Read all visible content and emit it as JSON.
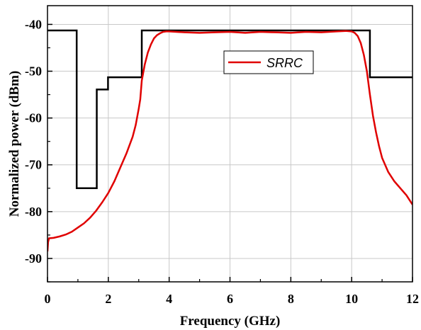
{
  "chart_data": {
    "type": "line",
    "title": "",
    "xlabel": "Frequency (GHz)",
    "ylabel": "Normalized power (dBm)",
    "xlim": [
      0,
      12
    ],
    "ylim": [
      -95,
      -36
    ],
    "x_ticks": [
      0,
      2,
      4,
      6,
      8,
      10,
      12
    ],
    "x_tick_labels": [
      "0",
      "2",
      "4",
      "6",
      "8",
      "10",
      "12"
    ],
    "y_ticks": [
      -40,
      -50,
      -60,
      -70,
      -80,
      -90
    ],
    "y_tick_labels": [
      "-40",
      "-50",
      "-60",
      "-70",
      "-80",
      "-90"
    ],
    "grid": true,
    "legend_position": "top-right",
    "colors": {
      "mask": "#000000",
      "srrc": "#e00000",
      "grid": "#c8c8c8"
    },
    "series": [
      {
        "id": "mask",
        "x": [
          0,
          0.96,
          0.96,
          1.62,
          1.62,
          1.99,
          1.99,
          3.1,
          3.1,
          10.6,
          10.6,
          12
        ],
        "values": [
          -41.3,
          -41.3,
          -75.0,
          -75.0,
          -53.9,
          -53.9,
          -51.3,
          -51.3,
          -41.3,
          -41.3,
          -51.3,
          -51.3
        ]
      },
      {
        "name": "SRRC",
        "x": [
          0,
          0.02,
          0.05,
          0.2,
          0.4,
          0.6,
          0.8,
          1.0,
          1.2,
          1.4,
          1.6,
          1.8,
          2.0,
          2.2,
          2.4,
          2.6,
          2.8,
          2.9,
          3.0,
          3.05,
          3.1,
          3.2,
          3.3,
          3.4,
          3.5,
          3.6,
          3.7,
          3.8,
          3.9,
          4.0,
          4.5,
          5.0,
          5.5,
          6.0,
          6.5,
          7.0,
          7.5,
          8.0,
          8.5,
          9.0,
          9.5,
          9.8,
          10.0,
          10.1,
          10.2,
          10.3,
          10.4,
          10.5,
          10.6,
          10.7,
          10.8,
          10.9,
          11.0,
          11.2,
          11.4,
          11.6,
          11.8,
          11.9,
          12.0
        ],
        "values": [
          -88.5,
          -86.5,
          -85.7,
          -85.6,
          -85.3,
          -84.9,
          -84.3,
          -83.4,
          -82.5,
          -81.3,
          -79.8,
          -78.0,
          -76.0,
          -73.5,
          -70.5,
          -67.5,
          -64.0,
          -61.5,
          -58.0,
          -56.0,
          -52.0,
          -48.5,
          -46.0,
          -44.3,
          -43.0,
          -42.3,
          -41.9,
          -41.6,
          -41.5,
          -41.5,
          -41.7,
          -41.8,
          -41.7,
          -41.6,
          -41.8,
          -41.6,
          -41.7,
          -41.8,
          -41.6,
          -41.7,
          -41.5,
          -41.4,
          -41.5,
          -41.8,
          -42.5,
          -44.0,
          -46.5,
          -50.0,
          -55.0,
          -59.5,
          -63.0,
          -66.0,
          -68.5,
          -71.5,
          -73.5,
          -75.0,
          -76.5,
          -77.5,
          -78.5
        ]
      }
    ]
  }
}
